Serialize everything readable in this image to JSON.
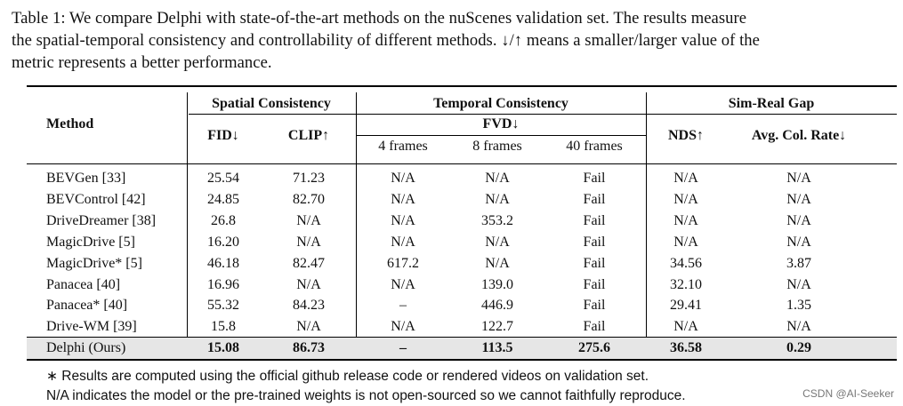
{
  "caption": {
    "line1": "Table 1: We compare Delphi with state-of-the-art methods on the nuScenes validation set. The results measure",
    "line2": "the spatial-temporal consistency and controllability of different methods. ↓/↑ means a smaller/larger value of the",
    "line3": "metric represents a better performance."
  },
  "header": {
    "method": "Method",
    "spatial": "Spatial Consistency",
    "temporal": "Temporal Consistency",
    "simreal": "Sim-Real Gap",
    "fid": "FID↓",
    "clip": "CLIP↑",
    "fvd": "FVD↓",
    "f4": "4 frames",
    "f8": "8 frames",
    "f40": "40 frames",
    "nds": "NDS↑",
    "col": "Avg. Col. Rate↓"
  },
  "rows": [
    {
      "method": "BEVGen [33]",
      "fid": "25.54",
      "clip": "71.23",
      "f4": "N/A",
      "f8": "N/A",
      "f40": "Fail",
      "nds": "N/A",
      "col": "N/A"
    },
    {
      "method": "BEVControl [42]",
      "fid": "24.85",
      "clip": "82.70",
      "f4": "N/A",
      "f8": "N/A",
      "f40": "Fail",
      "nds": "N/A",
      "col": "N/A"
    },
    {
      "method": "DriveDreamer [38]",
      "fid": "26.8",
      "clip": "N/A",
      "f4": "N/A",
      "f8": "353.2",
      "f40": "Fail",
      "nds": "N/A",
      "col": "N/A"
    },
    {
      "method": "MagicDrive [5]",
      "fid": "16.20",
      "clip": "N/A",
      "f4": "N/A",
      "f8": "N/A",
      "f40": "Fail",
      "nds": "N/A",
      "col": "N/A"
    },
    {
      "method": "MagicDrive* [5]",
      "fid": "46.18",
      "clip": "82.47",
      "f4": "617.2",
      "f8": "N/A",
      "f40": "Fail",
      "nds": "34.56",
      "col": "3.87"
    },
    {
      "method": "Panacea [40]",
      "fid": "16.96",
      "clip": "N/A",
      "f4": "N/A",
      "f8": "139.0",
      "f40": "Fail",
      "nds": "32.10",
      "col": "N/A"
    },
    {
      "method": "Panacea* [40]",
      "fid": "55.32",
      "clip": "84.23",
      "f4": "–",
      "f8": "446.9",
      "f40": "Fail",
      "nds": "29.41",
      "col": "1.35"
    },
    {
      "method": "Drive-WM [39]",
      "fid": "15.8",
      "clip": "N/A",
      "f4": "N/A",
      "f8": "122.7",
      "f40": "Fail",
      "nds": "N/A",
      "col": "N/A"
    },
    {
      "method": "Delphi (Ours)",
      "fid": "15.08",
      "clip": "86.73",
      "f4": "–",
      "f8": "113.5",
      "f40": "275.6",
      "nds": "36.58",
      "col": "0.29"
    }
  ],
  "footnotes": {
    "star_symbol": "∗",
    "note1": " Results are computed using the official github release code or rendered videos on validation set.",
    "note2": "N/A indicates the model or the pre-trained weights is not open-sourced so we cannot faithfully reproduce."
  },
  "watermark": "CSDN @AI-Seeker"
}
